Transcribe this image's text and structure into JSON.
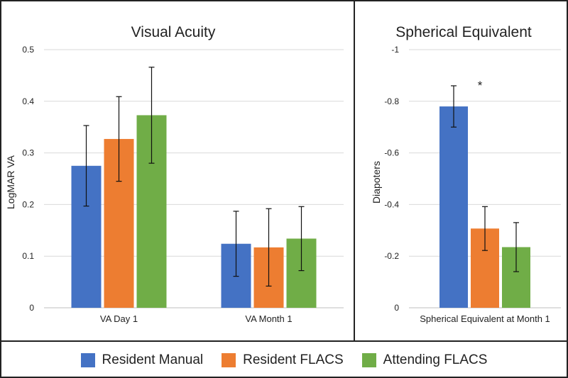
{
  "chart_data": [
    {
      "type": "bar",
      "title": "Visual Acuity",
      "xlabel": "",
      "ylabel": "LogMAR VA",
      "ylim": [
        0,
        0.5
      ],
      "yticks": [
        "0",
        "0.1",
        "0.2",
        "0.3",
        "0.4",
        "0.5"
      ],
      "categories": [
        "VA Day 1",
        "VA Month 1"
      ],
      "series": [
        {
          "name": "Resident Manual",
          "values": [
            0.275,
            0.124
          ],
          "error": [
            0.078,
            0.063
          ]
        },
        {
          "name": "Resident FLACS",
          "values": [
            0.327,
            0.117
          ],
          "error": [
            0.082,
            0.075
          ]
        },
        {
          "name": "Attending FLACS",
          "values": [
            0.373,
            0.134
          ],
          "error": [
            0.093,
            0.062
          ]
        }
      ],
      "grid": true
    },
    {
      "type": "bar",
      "title": "Spherical Equivalent",
      "xlabel": "",
      "ylabel": "Diapoters",
      "ylim": [
        0,
        -1
      ],
      "yticks": [
        "0",
        "-0.2",
        "-0.4",
        "-0.6",
        "-0.8",
        "-1"
      ],
      "categories": [
        "Spherical Equivalent at Month 1"
      ],
      "series": [
        {
          "name": "Resident Manual",
          "values": [
            -0.78
          ],
          "error": [
            0.08
          ]
        },
        {
          "name": "Resident FLACS",
          "values": [
            -0.307
          ],
          "error": [
            0.085
          ]
        },
        {
          "name": "Attending FLACS",
          "values": [
            -0.235
          ],
          "error": [
            0.095
          ]
        }
      ],
      "annotation": "*",
      "grid": true
    }
  ],
  "legend": {
    "items": [
      {
        "label": "Resident Manual",
        "color": "#4472C4"
      },
      {
        "label": "Resident FLACS",
        "color": "#ED7D31"
      },
      {
        "label": "Attending FLACS",
        "color": "#70AD47"
      }
    ]
  }
}
